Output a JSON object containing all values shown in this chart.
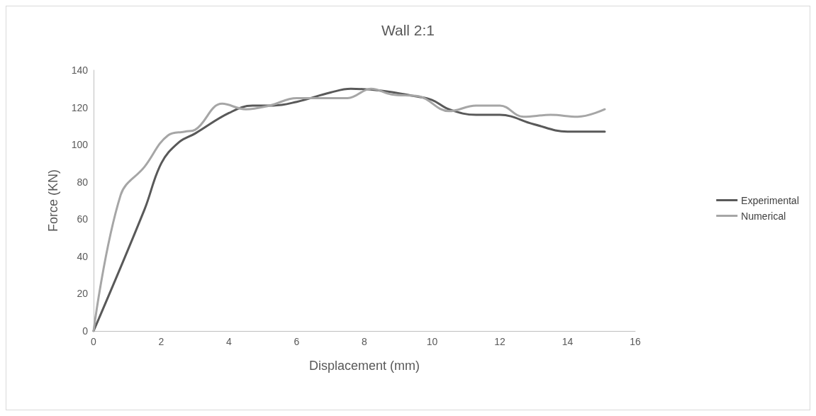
{
  "chart_data": {
    "type": "line",
    "title": "Wall 2:1",
    "xlabel": "Displacement (mm)",
    "ylabel": "Force (KN)",
    "xlim": [
      0,
      16
    ],
    "xticks": [
      0,
      2,
      4,
      6,
      8,
      10,
      12,
      14,
      16
    ],
    "ylim": [
      0,
      140
    ],
    "yticks": [
      0,
      20,
      40,
      60,
      80,
      100,
      120,
      140
    ],
    "grid": false,
    "legend": "right",
    "marker": "none",
    "line_style": "solid",
    "series": [
      {
        "name": "Experimental",
        "color": "#595959",
        "x": [
          0,
          1.5,
          2,
          2.5,
          3,
          4,
          4.7,
          5.3,
          6,
          7,
          7.6,
          8.5,
          9.5,
          10,
          10.5,
          11.3,
          12,
          13,
          14,
          15.1
        ],
        "values": [
          0,
          65,
          90,
          101,
          106,
          117,
          121,
          121,
          123,
          128,
          130,
          129,
          126,
          124,
          119,
          116,
          116,
          111,
          107,
          107
        ]
      },
      {
        "name": "Numerical",
        "color": "#a6a6a6",
        "x": [
          0,
          0.8,
          1.5,
          2.2,
          2.7,
          3,
          3.8,
          4.5,
          5.2,
          6,
          6.8,
          7.5,
          8.2,
          8.8,
          9.6,
          10.5,
          11.3,
          12,
          12.7,
          13.5,
          14.3,
          15.1
        ],
        "values": [
          0,
          73,
          88,
          105,
          107,
          108,
          122,
          119,
          121,
          125,
          125,
          125,
          130,
          127,
          126,
          118,
          121,
          121,
          115,
          116,
          115,
          119
        ]
      }
    ]
  }
}
